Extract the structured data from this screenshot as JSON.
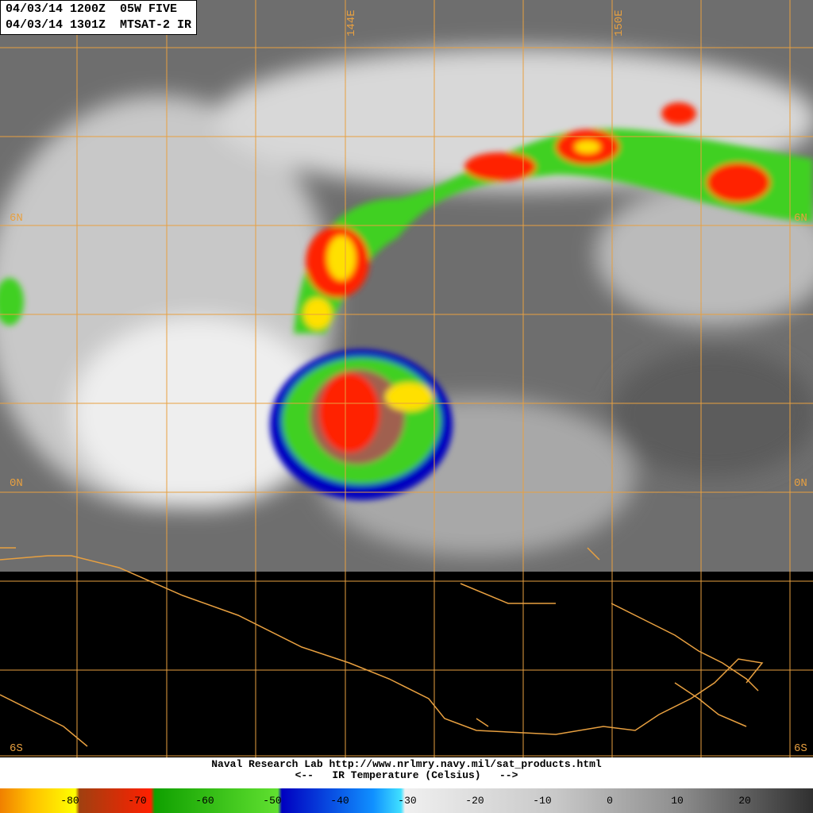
{
  "header": {
    "line1": "04/03/14 1200Z  05W FIVE",
    "line2": "04/03/14 1301Z  MTSAT-2 IR"
  },
  "longitudes": [
    "144E",
    "150E"
  ],
  "latitudes": {
    "left": [
      "6N",
      "0N",
      "6S"
    ],
    "right": [
      "6N",
      "0N",
      "6S"
    ]
  },
  "footer": {
    "credit": "Naval Research Lab http://www.nrlmry.navy.mil/sat_products.html",
    "caption": "<--   IR Temperature (Celsius)   -->"
  },
  "colorbar": {
    "ticks": [
      -80,
      -70,
      -60,
      -50,
      -40,
      -30,
      -20,
      -10,
      0,
      10,
      20
    ]
  }
}
